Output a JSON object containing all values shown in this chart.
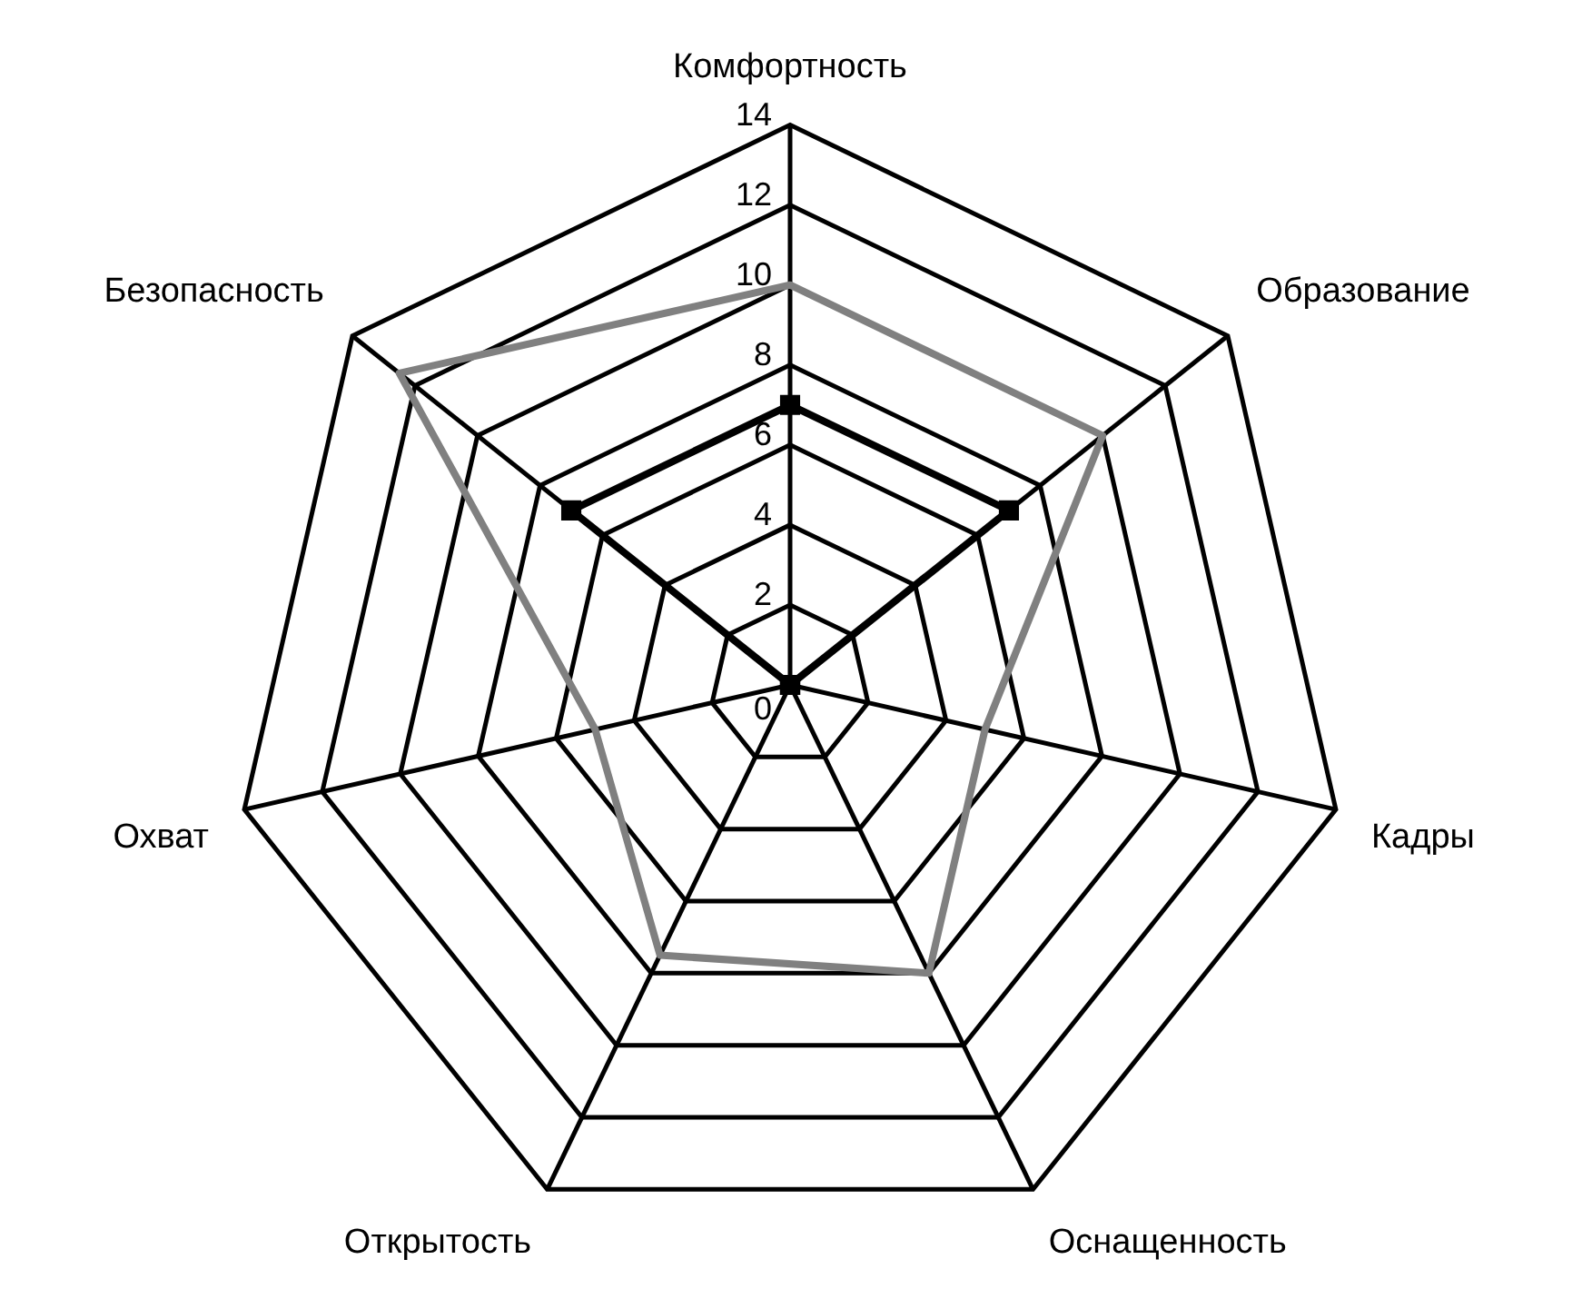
{
  "chart_data": {
    "type": "radar",
    "categories": [
      "Комфортность",
      "Образование",
      "Кадры",
      "Оснащенность",
      "Открытость",
      "Охват",
      "Безопасность"
    ],
    "series": [
      {
        "color": "#000000",
        "marker": "square",
        "values": [
          7,
          7,
          0,
          0,
          0,
          0,
          7
        ]
      },
      {
        "color": "#808080",
        "marker": "none",
        "values": [
          10,
          10,
          5,
          8,
          7.5,
          5,
          12.5
        ]
      }
    ],
    "ylim": [
      0,
      14
    ],
    "yticks": [
      0,
      2,
      4,
      6,
      8,
      10,
      12,
      14
    ],
    "grid": true,
    "legend": false
  }
}
